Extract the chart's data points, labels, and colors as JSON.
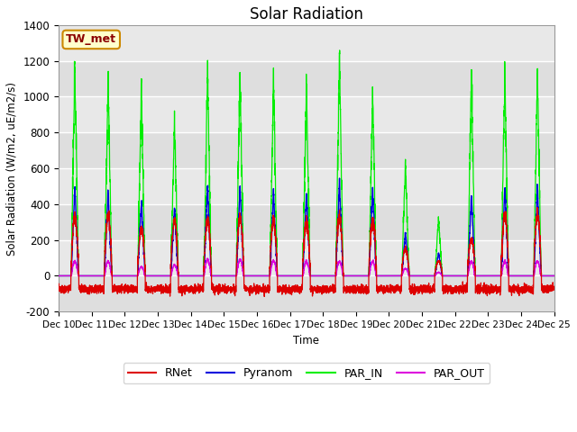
{
  "title": "Solar Radiation",
  "ylabel": "Solar Radiation (W/m2, uE/m2/s)",
  "xlabel": "Time",
  "ylim": [
    -200,
    1400
  ],
  "yticks": [
    -200,
    0,
    200,
    400,
    600,
    800,
    1000,
    1200,
    1400
  ],
  "xlim_start": 10,
  "xlim_end": 25,
  "xtick_labels": [
    "Dec 10",
    "Dec 11",
    "Dec 12",
    "Dec 13",
    "Dec 14",
    "Dec 15",
    "Dec 16",
    "Dec 17",
    "Dec 18",
    "Dec 19",
    "Dec 20",
    "Dec 21",
    "Dec 22",
    "Dec 23",
    "Dec 24",
    "Dec 25"
  ],
  "station_label": "TW_met",
  "colors": {
    "RNet": "#dd0000",
    "Pyranom": "#0000dd",
    "PAR_IN": "#00ee00",
    "PAR_OUT": "#dd00dd"
  },
  "legend_entries": [
    "RNet",
    "Pyranom",
    "PAR_IN",
    "PAR_OUT"
  ],
  "plot_bg_color": "#e8e8e8",
  "fig_bg_color": "#ffffff",
  "grid_color": "#d0d0d0",
  "figsize": [
    6.4,
    4.8
  ],
  "dpi": 100
}
